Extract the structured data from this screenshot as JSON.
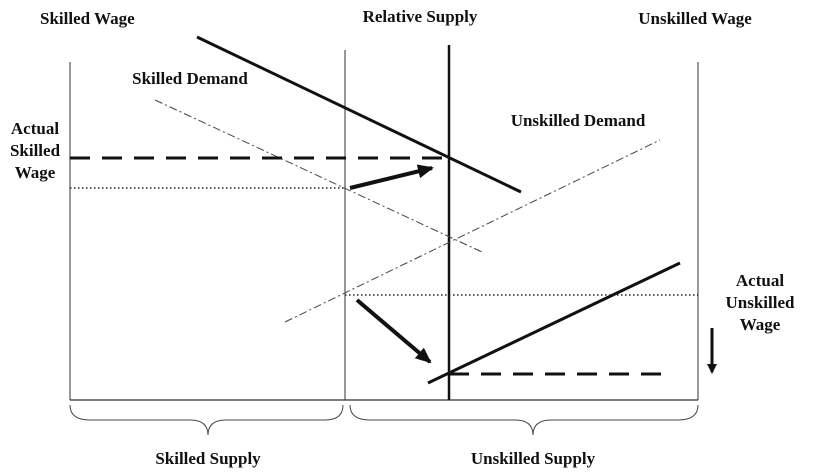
{
  "header": {
    "left": "Skilled Wage",
    "center": "Relative Supply",
    "right": "Unskilled Wage"
  },
  "curves": {
    "skilled_demand": "Skilled Demand",
    "unskilled_demand": "Unskilled Demand"
  },
  "left_label": [
    "Actual",
    "Skilled",
    "Wage"
  ],
  "right_label": [
    "Actual",
    "Unskilled",
    "Wage"
  ],
  "footer": {
    "left": "Skilled Supply",
    "right": "Unskilled Supply"
  }
}
